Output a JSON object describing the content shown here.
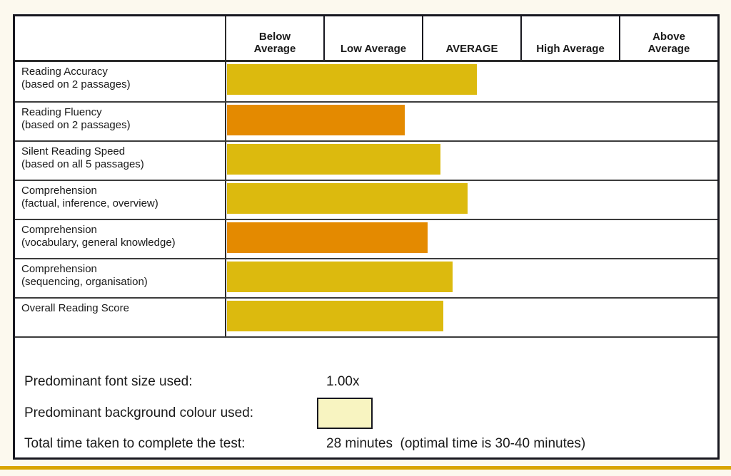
{
  "page": {
    "background": "#fcf9ee",
    "accent_line_color": "#d9a500"
  },
  "table": {
    "border_color": "#17171f",
    "grid_color": "#3c3c3c",
    "bar_colors": {
      "yellow": "#dcba0e",
      "orange": "#e48a00"
    },
    "header": {
      "bands": [
        {
          "lines": [
            "Below",
            "Average"
          ]
        },
        {
          "lines": [
            "Low Average"
          ]
        },
        {
          "lines": [
            "AVERAGE"
          ]
        },
        {
          "lines": [
            "High Average"
          ]
        },
        {
          "lines": [
            "Above",
            "Average"
          ]
        }
      ]
    },
    "rows": [
      {
        "label": "Reading Accuracy",
        "sublabel": "(based on 2 passages)",
        "value": 2.54,
        "color": "#dcba0e",
        "band_reached": "AVERAGE"
      },
      {
        "label": "Reading Fluency",
        "sublabel": "(based on 2 passages)",
        "value": 1.81,
        "color": "#e48a00",
        "band_reached": "Low Average"
      },
      {
        "label": "Silent Reading Speed",
        "sublabel": "(based on all 5 passages)",
        "value": 2.17,
        "color": "#dcba0e",
        "band_reached": "AVERAGE"
      },
      {
        "label": "Comprehension",
        "sublabel": "(factual, inference, overview)",
        "value": 2.45,
        "color": "#dcba0e",
        "band_reached": "AVERAGE"
      },
      {
        "label": "Comprehension",
        "sublabel": "(vocabulary, general knowledge)",
        "value": 2.04,
        "color": "#e48a00",
        "band_reached": "AVERAGE"
      },
      {
        "label": "Comprehension",
        "sublabel": "(sequencing, organisation)",
        "value": 2.3,
        "color": "#dcba0e",
        "band_reached": "AVERAGE"
      },
      {
        "label": "Overall Reading Score",
        "sublabel": "",
        "value": 2.2,
        "color": "#dcba0e",
        "band_reached": "AVERAGE"
      }
    ]
  },
  "summary": {
    "font_size": {
      "label": "Predominant font size used:",
      "value": "1.00x"
    },
    "background_colour": {
      "label": "Predominant background colour used:",
      "swatch_color": "#f8f4c1"
    },
    "total_time": {
      "label": "Total time taken to complete the test:",
      "value": "28 minutes  (optimal time is 30-40 minutes)"
    }
  },
  "chart_data": {
    "type": "bar",
    "orientation": "horizontal",
    "title": "Reading test score bands",
    "bands": [
      "Below Average",
      "Low Average",
      "AVERAGE",
      "High Average",
      "Above Average"
    ],
    "categories": [
      "Reading Accuracy (based on 2 passages)",
      "Reading Fluency (based on 2 passages)",
      "Silent Reading Speed (based on all 5 passages)",
      "Comprehension (factual, inference, overview)",
      "Comprehension (vocabulary, general knowledge)",
      "Comprehension (sequencing, organisation)",
      "Overall Reading Score"
    ],
    "values": [
      2.54,
      1.81,
      2.17,
      2.45,
      2.04,
      2.3,
      2.2
    ],
    "value_scale": "band-column units: 0 = left edge of 'Below Average', 5 = right edge of 'Above Average'",
    "xlim": [
      0,
      5
    ],
    "bar_colors": [
      "#dcba0e",
      "#e48a00",
      "#dcba0e",
      "#dcba0e",
      "#e48a00",
      "#dcba0e",
      "#dcba0e"
    ],
    "grid": false,
    "legend": "none"
  }
}
